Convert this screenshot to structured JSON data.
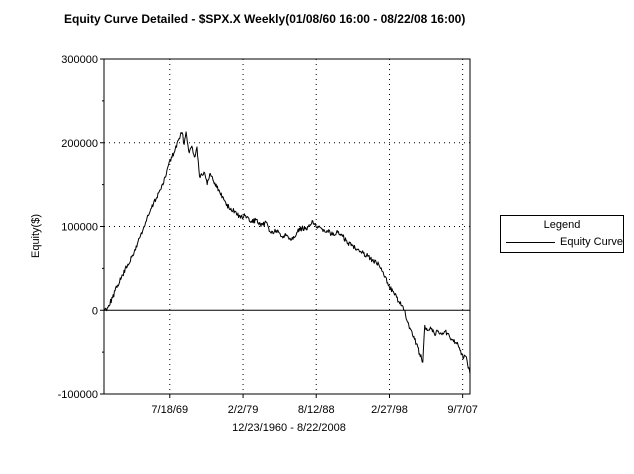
{
  "title": "Equity Curve Detailed - $SPX.X Weekly(01/08/60 16:00 - 08/22/08 16:00)",
  "chart_data": {
    "type": "line",
    "title": "Equity Curve Detailed - $SPX.X Weekly(01/08/60 16:00 - 08/22/08 16:00)",
    "ylabel": "Equity($)",
    "xlabel": "12/23/1960 - 8/22/2008",
    "ylim": [
      -100000,
      300000
    ],
    "y_ticks": [
      -100000,
      0,
      100000,
      200000,
      300000
    ],
    "y_tick_labels": [
      "-100000",
      "0",
      "100000",
      "200000",
      "300000"
    ],
    "xlim": [
      "1960-12-23",
      "2008-08-22"
    ],
    "x_ticks": [
      "1969-07-18",
      "1979-02-02",
      "1988-08-12",
      "1998-02-27",
      "2007-09-07"
    ],
    "x_tick_labels": [
      "7/18/69",
      "2/2/79",
      "8/12/88",
      "2/27/98",
      "9/7/07"
    ],
    "grid": "dotted",
    "zero_line": true,
    "legend": {
      "title": "Legend",
      "position": "right",
      "entries": [
        "Equity Curve"
      ]
    },
    "series": [
      {
        "name": "Equity Curve",
        "color": "#000000",
        "x": [
          "1960-12-23",
          "1961-06-01",
          "1962-02-01",
          "1962-10-01",
          "1963-06-01",
          "1964-02-01",
          "1964-10-01",
          "1965-06-01",
          "1966-02-01",
          "1966-10-01",
          "1967-06-01",
          "1968-02-01",
          "1968-10-01",
          "1969-06-01",
          "1970-02-01",
          "1970-10-01",
          "1971-03-01",
          "1971-06-01",
          "1971-09-01",
          "1972-02-01",
          "1972-06-01",
          "1972-10-01",
          "1973-02-01",
          "1973-06-01",
          "1974-01-01",
          "1974-06-01",
          "1974-10-01",
          "1975-06-01",
          "1976-02-01",
          "1976-10-01",
          "1977-06-01",
          "1978-02-01",
          "1978-10-01",
          "1979-06-01",
          "1980-02-01",
          "1980-10-01",
          "1981-06-01",
          "1982-02-01",
          "1982-10-01",
          "1983-06-01",
          "1984-02-01",
          "1984-10-01",
          "1985-06-01",
          "1986-02-01",
          "1986-10-01",
          "1987-06-01",
          "1988-02-01",
          "1988-10-01",
          "1989-06-01",
          "1990-02-01",
          "1990-10-01",
          "1991-06-01",
          "1992-02-01",
          "1992-10-01",
          "1993-06-01",
          "1994-02-01",
          "1994-10-01",
          "1995-06-01",
          "1996-02-01",
          "1996-10-01",
          "1997-06-01",
          "1998-02-01",
          "1998-10-01",
          "1999-06-01",
          "2000-02-01",
          "2000-10-01",
          "2001-03-01",
          "2001-09-01",
          "2002-02-01",
          "2002-07-01",
          "2002-10-01",
          "2003-03-01",
          "2003-07-01",
          "2004-01-01",
          "2004-06-01",
          "2004-10-01",
          "2005-06-01",
          "2006-01-01",
          "2006-06-01",
          "2006-12-01",
          "2007-06-01",
          "2007-10-01",
          "2008-02-01",
          "2008-05-01",
          "2008-08-22"
        ],
        "y": [
          0,
          3000,
          15000,
          30000,
          42000,
          55000,
          65000,
          82000,
          97000,
          113000,
          127000,
          140000,
          152000,
          175000,
          188000,
          205000,
          212000,
          198000,
          213000,
          188000,
          196000,
          183000,
          195000,
          160000,
          165000,
          150000,
          163000,
          152000,
          140000,
          130000,
          120000,
          118000,
          110000,
          113000,
          105000,
          108000,
          100000,
          105000,
          92000,
          95000,
          88000,
          90000,
          85000,
          93000,
          98000,
          96000,
          107000,
          98000,
          97000,
          95000,
          90000,
          93000,
          88000,
          80000,
          77000,
          73000,
          68000,
          65000,
          58000,
          55000,
          42000,
          30000,
          20000,
          10000,
          0,
          -22000,
          -30000,
          -40000,
          -52000,
          -62000,
          -18000,
          -24000,
          -20000,
          -28000,
          -25000,
          -28000,
          -25000,
          -32000,
          -35000,
          -40000,
          -48000,
          -58000,
          -55000,
          -65000,
          -76000
        ]
      }
    ]
  }
}
